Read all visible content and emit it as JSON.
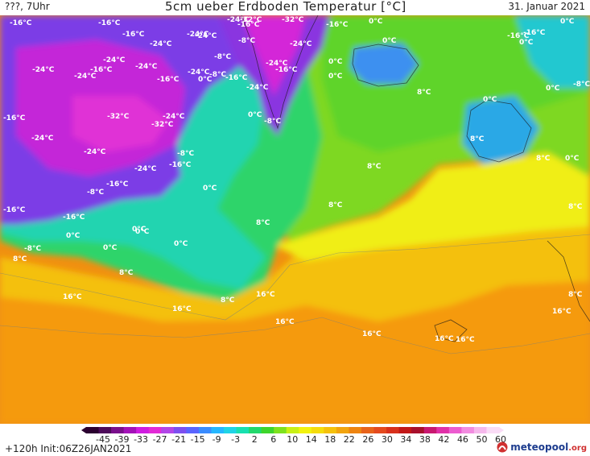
{
  "header": {
    "left_label": "???, 7Uhr",
    "title": "5cm ueber Erdboden Temperatur [°C]",
    "date": "31. Januar 2021"
  },
  "footer": {
    "forecast_step": "+120h",
    "init": "Init:06Z26JAN2021",
    "brand": "meteopool",
    "brand_suffix": ".org"
  },
  "map_labels": [
    {
      "text": "-16°C"
    },
    {
      "text": "-16°C"
    },
    {
      "text": "-16°C"
    },
    {
      "text": "-24°C"
    },
    {
      "text": "-32°C"
    },
    {
      "text": "-24°C"
    },
    {
      "text": "-16°C"
    },
    {
      "text": "-32°C"
    },
    {
      "text": "0°C"
    },
    {
      "text": "0°C"
    },
    {
      "text": "-16°C"
    },
    {
      "text": "-24°C"
    },
    {
      "text": "-24°C"
    },
    {
      "text": "-24°C"
    },
    {
      "text": "-24°C"
    },
    {
      "text": "-24°C"
    },
    {
      "text": "-24°C"
    },
    {
      "text": "-24°C"
    },
    {
      "text": "-8°C"
    },
    {
      "text": "-8°C"
    },
    {
      "text": "-16°C"
    },
    {
      "text": "-24°C"
    },
    {
      "text": "-8°C"
    },
    {
      "text": "-24°C"
    },
    {
      "text": "-16°C"
    },
    {
      "text": "0°C"
    },
    {
      "text": "0°C"
    },
    {
      "text": "0°C"
    },
    {
      "text": "-16°C"
    },
    {
      "text": "-16°C"
    },
    {
      "text": "-24°C"
    },
    {
      "text": "0°C"
    },
    {
      "text": "-16°C"
    },
    {
      "text": "-24°C"
    },
    {
      "text": "-16°C"
    },
    {
      "text": "-16°C"
    },
    {
      "text": "8°C"
    },
    {
      "text": "0°C"
    },
    {
      "text": "0°C"
    },
    {
      "text": "-8°C"
    },
    {
      "text": "-32°C"
    },
    {
      "text": "-32°C"
    },
    {
      "text": "-24°C"
    },
    {
      "text": "0°C"
    },
    {
      "text": "-8°C"
    },
    {
      "text": "0°C"
    },
    {
      "text": "8°C"
    },
    {
      "text": "-24°C"
    },
    {
      "text": "-24°C"
    },
    {
      "text": "-8°C"
    },
    {
      "text": "-16°C"
    },
    {
      "text": "0°C"
    },
    {
      "text": "0°C"
    },
    {
      "text": "8°C"
    },
    {
      "text": "-16°C"
    },
    {
      "text": "-8°C"
    },
    {
      "text": "-16°C"
    },
    {
      "text": "8°C"
    },
    {
      "text": "8°C"
    },
    {
      "text": "8°C"
    },
    {
      "text": "-16°C"
    },
    {
      "text": "0°C"
    },
    {
      "text": "0°C"
    },
    {
      "text": "0°C"
    },
    {
      "text": "-8°C"
    },
    {
      "text": "8°C"
    },
    {
      "text": "8°C"
    },
    {
      "text": "0°C"
    },
    {
      "text": "8°C"
    },
    {
      "text": "0°C"
    },
    {
      "text": "16°C"
    },
    {
      "text": "16°C"
    },
    {
      "text": "8°C"
    },
    {
      "text": "16°C"
    },
    {
      "text": "16°C"
    },
    {
      "text": "16°C"
    },
    {
      "text": "16°C"
    },
    {
      "text": "16°C"
    },
    {
      "text": "16°C"
    },
    {
      "text": "8°C"
    }
  ],
  "colorbar": {
    "ticks": [
      "-45",
      "-39",
      "-33",
      "-27",
      "-21",
      "-15",
      "-9",
      "-3",
      "2",
      "6",
      "10",
      "14",
      "18",
      "22",
      "26",
      "30",
      "34",
      "38",
      "42",
      "46",
      "50",
      "60"
    ],
    "colors": [
      "#2b0030",
      "#4d0a5a",
      "#7a0f8c",
      "#a312b8",
      "#cf1ce0",
      "#e22ad6",
      "#b246e8",
      "#7d4ff0",
      "#5a64ff",
      "#3a8cff",
      "#25b7ff",
      "#1fd4e6",
      "#18e0b0",
      "#22d86c",
      "#3ed52c",
      "#7ee21e",
      "#c8f016",
      "#f2f20e",
      "#f5dc0c",
      "#f5c10c",
      "#f2a40e",
      "#ee8410",
      "#e8631a",
      "#e44a1e",
      "#d8301c",
      "#c21818",
      "#a80f2c",
      "#c81870",
      "#e030a8",
      "#ec5cd0",
      "#f28ce0",
      "#f6b8ec",
      "#fadcf6"
    ]
  },
  "colors": {
    "violet": "#7c3ee6",
    "magenta": "#d81ee0",
    "cyan": "#28d2d8",
    "green": "#28d46a",
    "lime": "#72dc22",
    "yellow": "#eeee12",
    "orange": "#f5a00c"
  }
}
